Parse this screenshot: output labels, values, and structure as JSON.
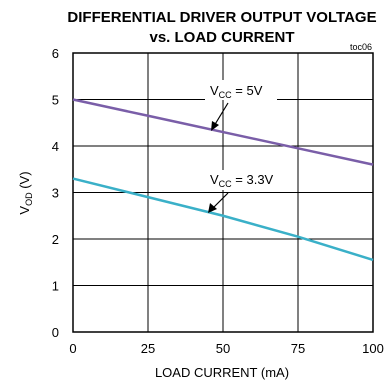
{
  "chart_data": {
    "type": "line",
    "title_line1": "DIFFERENTIAL DRIVER OUTPUT VOLTAGE",
    "title_line2": "vs. LOAD CURRENT",
    "tag": "toc06",
    "xlabel": "LOAD CURRENT (mA)",
    "ylabel_main": "V",
    "ylabel_sub": "OD",
    "ylabel_unit": " (V)",
    "xlim": [
      0,
      100
    ],
    "ylim": [
      0,
      6
    ],
    "xticks": [
      "0",
      "25",
      "50",
      "75",
      "100"
    ],
    "yticks": [
      "0",
      "1",
      "2",
      "3",
      "4",
      "5",
      "6"
    ],
    "grid": true,
    "series": [
      {
        "name_main": "V",
        "name_sub": "CC",
        "name_value": " = 5V",
        "color": "#7a5ea8",
        "x": [
          0,
          25,
          50,
          75,
          100
        ],
        "y": [
          5.0,
          4.65,
          4.3,
          3.95,
          3.6
        ]
      },
      {
        "name_main": "V",
        "name_sub": "CC",
        "name_value": " = 3.3V",
        "color": "#3ab0c8",
        "x": [
          0,
          25,
          50,
          75,
          100
        ],
        "y": [
          3.3,
          2.9,
          2.5,
          2.05,
          1.55
        ]
      }
    ]
  }
}
